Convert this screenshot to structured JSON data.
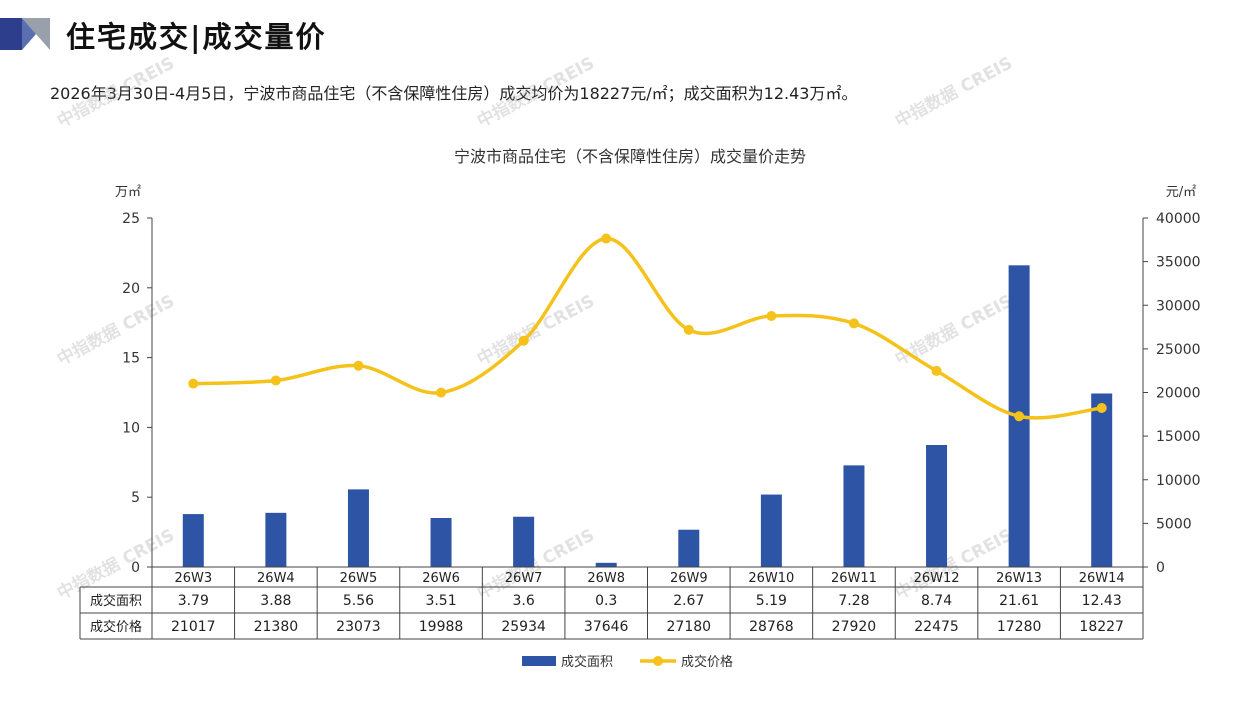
{
  "header": {
    "title": "住宅成交|成交量价",
    "summary": "2026年3月30日-4月5日，宁波市商品住宅（不含保障性住房）成交均价为18227元/㎡；成交面积为12.43万㎡。"
  },
  "watermark": {
    "text": "中指数据 CREIS"
  },
  "colors": {
    "bar": "#2E55A5",
    "line": "#F5C21B",
    "logo_dark": "#2C3E8C",
    "logo_light": "#9AA0AA"
  },
  "chart_data": {
    "type": "bar+line",
    "title": "宁波市商品住宅（不含保障性住房）成交量价走势",
    "categories": [
      "26W3",
      "26W4",
      "26W5",
      "26W6",
      "26W7",
      "26W8",
      "26W9",
      "26W10",
      "26W11",
      "26W12",
      "26W13",
      "26W14"
    ],
    "series": [
      {
        "name": "成交面积",
        "type": "bar",
        "axis": "left",
        "values": [
          3.79,
          3.88,
          5.56,
          3.51,
          3.6,
          0.3,
          2.67,
          5.19,
          7.28,
          8.74,
          21.61,
          12.43
        ]
      },
      {
        "name": "成交价格",
        "type": "line",
        "axis": "right",
        "values": [
          21017,
          21380,
          23073,
          19988,
          25934,
          37646,
          27180,
          28768,
          27920,
          22475,
          17280,
          18227
        ]
      }
    ],
    "y_left": {
      "label": "万㎡",
      "min": 0,
      "max": 25,
      "ticks": [
        "0",
        "5",
        "10",
        "15",
        "20",
        "25"
      ]
    },
    "y_right": {
      "label": "元/㎡",
      "min": 0,
      "max": 40000,
      "ticks": [
        "0",
        "5000",
        "10000",
        "15000",
        "20000",
        "25000",
        "30000",
        "35000",
        "40000"
      ]
    },
    "table_rows": [
      {
        "label": "成交面积",
        "values": [
          "3.79",
          "3.88",
          "5.56",
          "3.51",
          "3.6",
          "0.3",
          "2.67",
          "5.19",
          "7.28",
          "8.74",
          "21.61",
          "12.43"
        ]
      },
      {
        "label": "成交价格",
        "values": [
          "21017",
          "21380",
          "23073",
          "19988",
          "25934",
          "37646",
          "27180",
          "28768",
          "27920",
          "22475",
          "17280",
          "18227"
        ]
      }
    ],
    "legend": [
      "成交面积",
      "成交价格"
    ],
    "legend_position": "bottom"
  }
}
